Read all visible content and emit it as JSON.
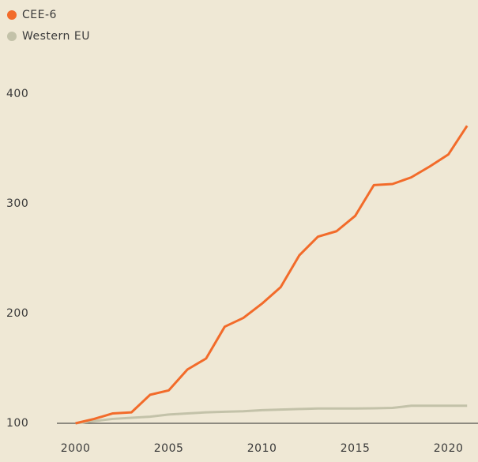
{
  "chart_data": {
    "type": "line",
    "x": [
      2000,
      2001,
      2002,
      2003,
      2004,
      2005,
      2006,
      2007,
      2008,
      2009,
      2010,
      2011,
      2012,
      2013,
      2014,
      2015,
      2016,
      2017,
      2018,
      2019,
      2020,
      2021
    ],
    "series": [
      {
        "name": "CEE-6",
        "color": "#f26b2a",
        "values": [
          100,
          104,
          109,
          110,
          126,
          130,
          149,
          159,
          188,
          196,
          209,
          224,
          253,
          270,
          275,
          289,
          317,
          318,
          324,
          334,
          345,
          371
        ]
      },
      {
        "name": "Western EU",
        "color": "#c3c2a9",
        "values": [
          100,
          102,
          104,
          105,
          106,
          108,
          109,
          110,
          110.5,
          111,
          112,
          112.5,
          113,
          113.5,
          113.5,
          113.5,
          113.7,
          114,
          116,
          116,
          116,
          116
        ]
      }
    ],
    "xlim": [
      1999,
      2021.5
    ],
    "xticks": [
      2000,
      2005,
      2010,
      2015,
      2020
    ],
    "ylim": [
      100,
      400
    ],
    "yticks": [
      100,
      200,
      300,
      400
    ],
    "grid": false,
    "legend": "top-left"
  }
}
